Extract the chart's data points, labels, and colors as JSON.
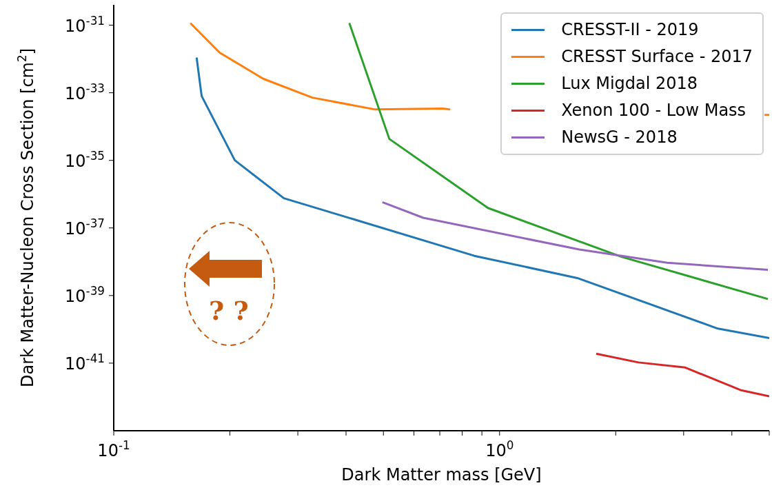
{
  "chart_data": {
    "type": "line",
    "xlabel": "Dark Matter mass [GeV]",
    "ylabel": "Dark Matter-Nucleon Cross Section [cm$^{2}$]",
    "log": "xy",
    "legend": "top right",
    "xlim": [
      0.1,
      5
    ],
    "xticks": [
      {
        "value": 0.1,
        "label": "10$^{-1}$"
      },
      {
        "value": 0.2,
        "label": null
      },
      {
        "value": 0.3,
        "label": null
      },
      {
        "value": 0.4,
        "label": null
      },
      {
        "value": 0.5,
        "label": null
      },
      {
        "value": 0.6,
        "label": null
      },
      {
        "value": 0.7,
        "label": null
      },
      {
        "value": 0.8,
        "label": null
      },
      {
        "value": 0.9,
        "label": null
      },
      {
        "value": 1,
        "label": "10$^{0}$"
      },
      {
        "value": 2,
        "label": null
      },
      {
        "value": 3,
        "label": null
      },
      {
        "value": 4,
        "label": null
      },
      {
        "value": 5,
        "label": null
      }
    ],
    "ylim": [
      1e-43,
      4e-31
    ],
    "yticks": [
      {
        "value": 1e-41,
        "label": "10$^{-41}$"
      },
      {
        "value": 1e-39,
        "label": "10$^{-39}$"
      },
      {
        "value": 1e-37,
        "label": "10$^{-37}$"
      },
      {
        "value": 1e-35,
        "label": "10$^{-35}$"
      },
      {
        "value": 1e-33,
        "label": "10$^{-33}$"
      },
      {
        "value": 1e-31,
        "label": "10$^{-31}$"
      }
    ],
    "series": [
      {
        "name": "CRESST-II - 2019",
        "color": "#1f77b4",
        "x": [
          0.164,
          0.169,
          0.206,
          0.276,
          0.86,
          1.59,
          3.68,
          5
        ],
        "values": [
          1.1e-32,
          8e-34,
          1e-35,
          7.6e-37,
          1.5e-38,
          3.3e-39,
          1.05e-40,
          5.5e-41
        ]
      },
      {
        "name": "CRESST Surface - 2017",
        "color": "#ff7f0e",
        "x": [
          0.158,
          0.188,
          0.244,
          0.327,
          0.476,
          0.713,
          0.745,
          2,
          4.86,
          5
        ],
        "values": [
          1.15e-31,
          1.55e-32,
          2.6e-33,
          7.2e-34,
          3.2e-34,
          3.4e-34,
          3.2e-34,
          null,
          2.2e-34,
          2.2e-34
        ]
      },
      {
        "name": "Lux Migdal 2018",
        "color": "#2ca02c",
        "x": [
          0.408,
          0.518,
          0.933,
          2.07,
          4.96
        ],
        "values": [
          1.15e-31,
          4.3e-35,
          3.9e-37,
          1.4e-38,
          7.9e-40
        ]
      },
      {
        "name": "Xenon 100 - Low Mass",
        "color": "#d62728",
        "x": [
          1.78,
          2.29,
          3.03,
          4.21,
          5
        ],
        "values": [
          1.9e-41,
          1.05e-41,
          7.4e-42,
          1.6e-42,
          1.05e-42
        ]
      },
      {
        "name": "NewsG - 2018",
        "color": "#9467bd",
        "x": [
          0.497,
          0.634,
          1.61,
          2.72,
          4.96
        ],
        "values": [
          5.8e-37,
          2e-37,
          2.3e-38,
          9.3e-39,
          5.8e-39
        ]
      }
    ],
    "annotations": [
      "? ?"
    ]
  }
}
